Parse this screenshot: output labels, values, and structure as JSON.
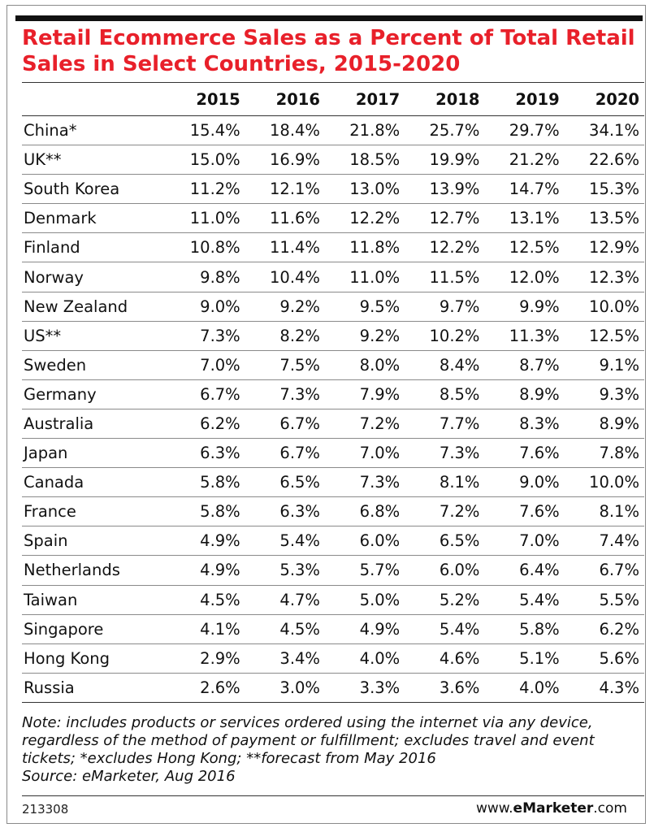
{
  "title": "Retail Ecommerce Sales as a Percent of Total Retail Sales in Select Countries, 2015-2020",
  "chart_data": {
    "type": "table",
    "title": "Retail Ecommerce Sales as a Percent of Total Retail Sales in Select Countries, 2015-2020",
    "columns": [
      "2015",
      "2016",
      "2017",
      "2018",
      "2019",
      "2020"
    ],
    "rows": [
      {
        "country": "China*",
        "values": [
          "15.4%",
          "18.4%",
          "21.8%",
          "25.7%",
          "29.7%",
          "34.1%"
        ]
      },
      {
        "country": "UK**",
        "values": [
          "15.0%",
          "16.9%",
          "18.5%",
          "19.9%",
          "21.2%",
          "22.6%"
        ]
      },
      {
        "country": "South Korea",
        "values": [
          "11.2%",
          "12.1%",
          "13.0%",
          "13.9%",
          "14.7%",
          "15.3%"
        ]
      },
      {
        "country": "Denmark",
        "values": [
          "11.0%",
          "11.6%",
          "12.2%",
          "12.7%",
          "13.1%",
          "13.5%"
        ]
      },
      {
        "country": "Finland",
        "values": [
          "10.8%",
          "11.4%",
          "11.8%",
          "12.2%",
          "12.5%",
          "12.9%"
        ]
      },
      {
        "country": "Norway",
        "values": [
          "9.8%",
          "10.4%",
          "11.0%",
          "11.5%",
          "12.0%",
          "12.3%"
        ]
      },
      {
        "country": "New Zealand",
        "values": [
          "9.0%",
          "9.2%",
          "9.5%",
          "9.7%",
          "9.9%",
          "10.0%"
        ]
      },
      {
        "country": "US**",
        "values": [
          "7.3%",
          "8.2%",
          "9.2%",
          "10.2%",
          "11.3%",
          "12.5%"
        ]
      },
      {
        "country": "Sweden",
        "values": [
          "7.0%",
          "7.5%",
          "8.0%",
          "8.4%",
          "8.7%",
          "9.1%"
        ]
      },
      {
        "country": "Germany",
        "values": [
          "6.7%",
          "7.3%",
          "7.9%",
          "8.5%",
          "8.9%",
          "9.3%"
        ]
      },
      {
        "country": "Australia",
        "values": [
          "6.2%",
          "6.7%",
          "7.2%",
          "7.7%",
          "8.3%",
          "8.9%"
        ]
      },
      {
        "country": "Japan",
        "values": [
          "6.3%",
          "6.7%",
          "7.0%",
          "7.3%",
          "7.6%",
          "7.8%"
        ]
      },
      {
        "country": "Canada",
        "values": [
          "5.8%",
          "6.5%",
          "7.3%",
          "8.1%",
          "9.0%",
          "10.0%"
        ]
      },
      {
        "country": "France",
        "values": [
          "5.8%",
          "6.3%",
          "6.8%",
          "7.2%",
          "7.6%",
          "8.1%"
        ]
      },
      {
        "country": "Spain",
        "values": [
          "4.9%",
          "5.4%",
          "6.0%",
          "6.5%",
          "7.0%",
          "7.4%"
        ]
      },
      {
        "country": "Netherlands",
        "values": [
          "4.9%",
          "5.3%",
          "5.7%",
          "6.0%",
          "6.4%",
          "6.7%"
        ]
      },
      {
        "country": "Taiwan",
        "values": [
          "4.5%",
          "4.7%",
          "5.0%",
          "5.2%",
          "5.4%",
          "5.5%"
        ]
      },
      {
        "country": "Singapore",
        "values": [
          "4.1%",
          "4.5%",
          "4.9%",
          "5.4%",
          "5.8%",
          "6.2%"
        ]
      },
      {
        "country": "Hong Kong",
        "values": [
          "2.9%",
          "3.4%",
          "4.0%",
          "4.6%",
          "5.1%",
          "5.6%"
        ]
      },
      {
        "country": "Russia",
        "values": [
          "2.6%",
          "3.0%",
          "3.3%",
          "3.6%",
          "4.0%",
          "4.3%"
        ]
      }
    ]
  },
  "note": "Note: includes products or services ordered using the internet via any device, regardless of the method of payment or fulfillment; excludes travel and event tickets; *excludes Hong Kong; **forecast from May 2016",
  "source": "Source: eMarketer, Aug 2016",
  "chart_id": "213308",
  "brand": {
    "prefix": "www.",
    "name": "eMarketer",
    "suffix": ".com"
  },
  "colors": {
    "title": "#e8202a",
    "rule": "#111111",
    "text": "#111111"
  }
}
